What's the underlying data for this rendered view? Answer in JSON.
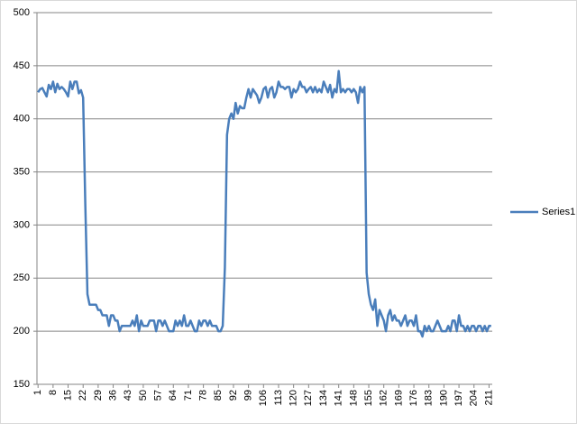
{
  "chart_data": {
    "type": "line",
    "x": [
      1,
      2,
      3,
      4,
      5,
      6,
      7,
      8,
      9,
      10,
      11,
      12,
      13,
      14,
      15,
      16,
      17,
      18,
      19,
      20,
      21,
      22,
      23,
      24,
      25,
      26,
      27,
      28,
      29,
      30,
      31,
      32,
      33,
      34,
      35,
      36,
      37,
      38,
      39,
      40,
      41,
      42,
      43,
      44,
      45,
      46,
      47,
      48,
      49,
      50,
      51,
      52,
      53,
      54,
      55,
      56,
      57,
      58,
      59,
      60,
      61,
      62,
      63,
      64,
      65,
      66,
      67,
      68,
      69,
      70,
      71,
      72,
      73,
      74,
      75,
      76,
      77,
      78,
      79,
      80,
      81,
      82,
      83,
      84,
      85,
      86,
      87,
      88,
      89,
      90,
      91,
      92,
      93,
      94,
      95,
      96,
      97,
      98,
      99,
      100,
      101,
      102,
      103,
      104,
      105,
      106,
      107,
      108,
      109,
      110,
      111,
      112,
      113,
      114,
      115,
      116,
      117,
      118,
      119,
      120,
      121,
      122,
      123,
      124,
      125,
      126,
      127,
      128,
      129,
      130,
      131,
      132,
      133,
      134,
      135,
      136,
      137,
      138,
      139,
      140,
      141,
      142,
      143,
      144,
      145,
      146,
      147,
      148,
      149,
      150,
      151,
      152,
      153,
      154,
      155,
      156,
      157,
      158,
      159,
      160,
      161,
      162,
      163,
      164,
      165,
      166,
      167,
      168,
      169,
      170,
      171,
      172,
      173,
      174,
      175,
      176,
      177,
      178,
      179,
      180,
      181,
      182,
      183,
      184,
      185,
      186,
      187,
      188,
      189,
      190,
      191,
      192,
      193,
      194,
      195,
      196,
      197,
      198,
      199,
      200,
      201,
      202,
      203,
      204,
      205,
      206,
      207,
      208,
      209,
      210,
      211,
      212
    ],
    "series": [
      {
        "name": "Series1",
        "color": "#4a7ebb",
        "values": [
          425,
          428,
          429,
          425,
          421,
          432,
          428,
          435,
          425,
          433,
          428,
          430,
          428,
          425,
          421,
          435,
          428,
          435,
          435,
          424,
          427,
          420,
          320,
          235,
          225,
          225,
          225,
          225,
          220,
          220,
          215,
          215,
          215,
          205,
          215,
          215,
          210,
          210,
          200,
          205,
          205,
          205,
          205,
          205,
          210,
          205,
          215,
          200,
          210,
          205,
          205,
          205,
          210,
          210,
          210,
          200,
          210,
          210,
          205,
          210,
          205,
          200,
          200,
          200,
          210,
          205,
          210,
          205,
          215,
          205,
          205,
          210,
          205,
          200,
          200,
          210,
          205,
          210,
          210,
          205,
          210,
          205,
          205,
          205,
          200,
          200,
          205,
          260,
          385,
          400,
          405,
          400,
          415,
          405,
          412,
          410,
          410,
          420,
          428,
          420,
          428,
          425,
          422,
          415,
          420,
          428,
          430,
          420,
          428,
          430,
          420,
          425,
          435,
          430,
          430,
          428,
          430,
          430,
          420,
          428,
          425,
          428,
          435,
          430,
          430,
          425,
          428,
          430,
          425,
          430,
          425,
          428,
          425,
          435,
          430,
          425,
          432,
          420,
          428,
          425,
          445,
          425,
          428,
          425,
          428,
          428,
          425,
          428,
          425,
          415,
          430,
          425,
          430,
          255,
          235,
          225,
          220,
          230,
          205,
          220,
          215,
          210,
          200,
          215,
          220,
          210,
          215,
          210,
          210,
          205,
          210,
          215,
          205,
          210,
          210,
          205,
          215,
          200,
          200,
          195,
          205,
          200,
          205,
          200,
          200,
          205,
          210,
          205,
          200,
          200,
          200,
          205,
          200,
          210,
          210,
          200,
          215,
          205,
          205,
          200,
          205,
          200,
          205,
          205,
          200,
          205,
          205,
          200,
          205,
          200,
          205,
          205
        ]
      }
    ],
    "xlim": [
      0.5,
      212.5
    ],
    "xticks": [
      1,
      8,
      15,
      22,
      29,
      36,
      43,
      50,
      57,
      64,
      71,
      78,
      85,
      92,
      99,
      106,
      113,
      120,
      127,
      134,
      141,
      148,
      155,
      162,
      169,
      176,
      183,
      190,
      197,
      204,
      211
    ],
    "ylim": [
      150,
      500
    ],
    "yticks": [
      150,
      200,
      250,
      300,
      350,
      400,
      450,
      500
    ],
    "grid": true,
    "legend": "right"
  }
}
